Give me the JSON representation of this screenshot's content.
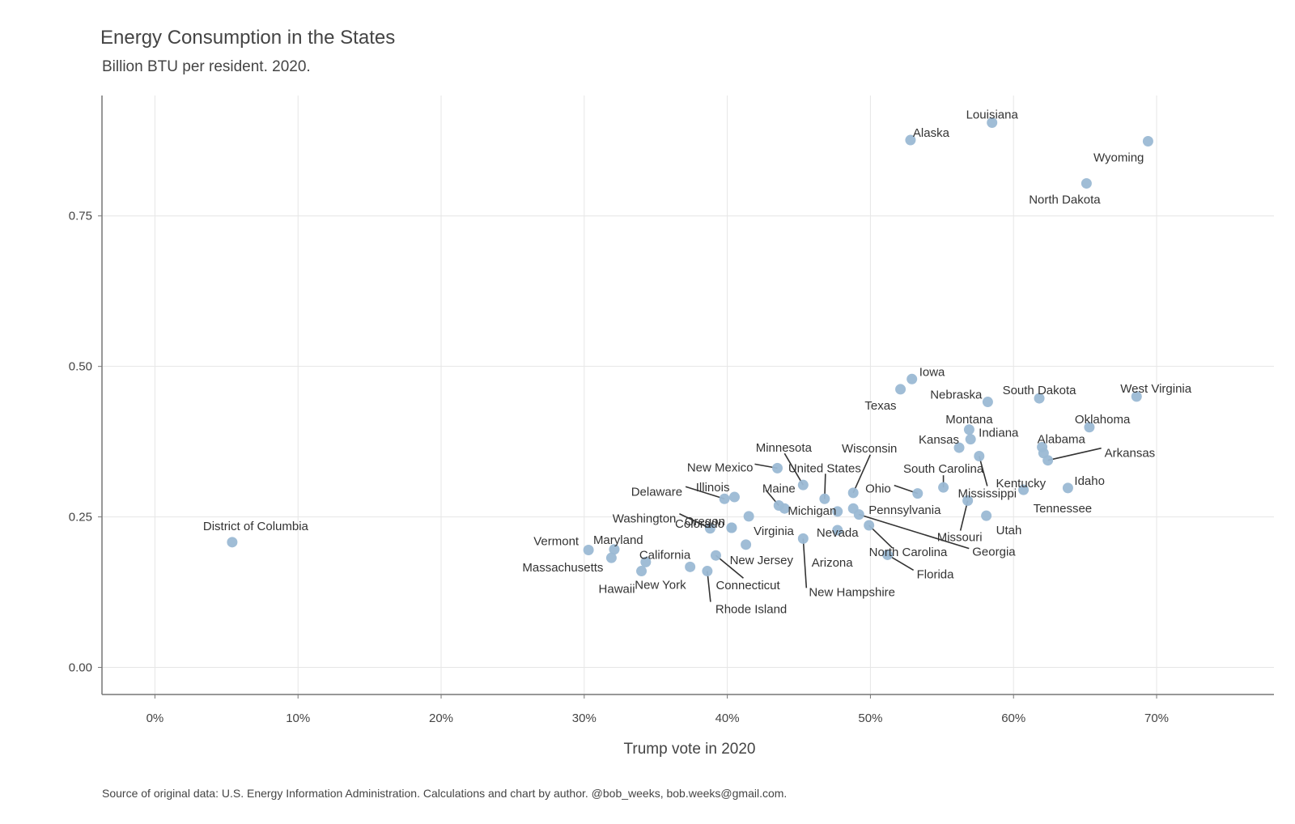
{
  "chart_data": {
    "type": "scatter",
    "title": "Energy Consumption in the States",
    "subtitle": "Billion BTU per resident. 2020.",
    "xlabel": "Trump vote in 2020",
    "ylabel": "",
    "caption": "Source of original data: U.S. Energy Information Administration. Calculations and chart by author. @bob_weeks, bob.weeks@gmail.com.",
    "xlim": [
      -0.037,
      0.782
    ],
    "ylim": [
      -0.045,
      0.95
    ],
    "x_ticks": [
      0,
      0.1,
      0.2,
      0.3,
      0.4,
      0.5,
      0.6,
      0.7
    ],
    "x_tick_labels": [
      "0%",
      "10%",
      "20%",
      "30%",
      "40%",
      "50%",
      "60%",
      "70%"
    ],
    "y_ticks": [
      0,
      0.25,
      0.5,
      0.75
    ],
    "y_tick_labels": [
      "0.00",
      "0.25",
      "0.50",
      "0.75"
    ],
    "grid": true,
    "legend": "none",
    "point_color": "#9bb9d4",
    "points": [
      {
        "name": "District of Columbia",
        "x": 0.054,
        "y": 0.208
      },
      {
        "name": "Vermont",
        "x": 0.303,
        "y": 0.195
      },
      {
        "name": "Maryland",
        "x": 0.321,
        "y": 0.196
      },
      {
        "name": "Massachusetts",
        "x": 0.319,
        "y": 0.182
      },
      {
        "name": "Hawaii",
        "x": 0.34,
        "y": 0.16
      },
      {
        "name": "California",
        "x": 0.343,
        "y": 0.175
      },
      {
        "name": "New York",
        "x": 0.374,
        "y": 0.167
      },
      {
        "name": "Rhode Island",
        "x": 0.386,
        "y": 0.16
      },
      {
        "name": "Connecticut",
        "x": 0.392,
        "y": 0.186
      },
      {
        "name": "Washington",
        "x": 0.388,
        "y": 0.231
      },
      {
        "name": "Delaware",
        "x": 0.398,
        "y": 0.28
      },
      {
        "name": "Illinois",
        "x": 0.405,
        "y": 0.283
      },
      {
        "name": "Colorado",
        "x": 0.403,
        "y": 0.232
      },
      {
        "name": "Oregon",
        "x": 0.403,
        "y": 0.232
      },
      {
        "name": "New Jersey",
        "x": 0.413,
        "y": 0.204
      },
      {
        "name": "Virginia",
        "x": 0.415,
        "y": 0.251
      },
      {
        "name": "New Mexico",
        "x": 0.435,
        "y": 0.331
      },
      {
        "name": "Maine",
        "x": 0.436,
        "y": 0.269
      },
      {
        "name": "Michigan",
        "x": 0.44,
        "y": 0.264
      },
      {
        "name": "Minnesota",
        "x": 0.453,
        "y": 0.303
      },
      {
        "name": "New Hampshire",
        "x": 0.453,
        "y": 0.214
      },
      {
        "name": "United States",
        "x": 0.468,
        "y": 0.28
      },
      {
        "name": "Nevada",
        "x": 0.477,
        "y": 0.228
      },
      {
        "name": "Arizona",
        "x": 0.477,
        "y": 0.259
      },
      {
        "name": "Wisconsin",
        "x": 0.488,
        "y": 0.29
      },
      {
        "name": "Pennsylvania",
        "x": 0.488,
        "y": 0.264
      },
      {
        "name": "Georgia",
        "x": 0.492,
        "y": 0.254
      },
      {
        "name": "North Carolina",
        "x": 0.499,
        "y": 0.236
      },
      {
        "name": "Florida",
        "x": 0.512,
        "y": 0.187
      },
      {
        "name": "Texas",
        "x": 0.521,
        "y": 0.462
      },
      {
        "name": "Iowa",
        "x": 0.529,
        "y": 0.479
      },
      {
        "name": "Alaska",
        "x": 0.528,
        "y": 0.876
      },
      {
        "name": "Ohio",
        "x": 0.533,
        "y": 0.289
      },
      {
        "name": "South Carolina",
        "x": 0.551,
        "y": 0.299
      },
      {
        "name": "Kansas",
        "x": 0.562,
        "y": 0.365
      },
      {
        "name": "Missouri",
        "x": 0.568,
        "y": 0.277
      },
      {
        "name": "Montana",
        "x": 0.569,
        "y": 0.395
      },
      {
        "name": "Indiana",
        "x": 0.57,
        "y": 0.379
      },
      {
        "name": "Mississippi",
        "x": 0.576,
        "y": 0.351
      },
      {
        "name": "Utah",
        "x": 0.581,
        "y": 0.252
      },
      {
        "name": "Nebraska",
        "x": 0.582,
        "y": 0.441
      },
      {
        "name": "Louisiana",
        "x": 0.585,
        "y": 0.905
      },
      {
        "name": "Kentucky",
        "x": 0.621,
        "y": 0.356
      },
      {
        "name": "Tennessee",
        "x": 0.607,
        "y": 0.295
      },
      {
        "name": "South Dakota",
        "x": 0.618,
        "y": 0.447
      },
      {
        "name": "Alabama",
        "x": 0.62,
        "y": 0.366
      },
      {
        "name": "Arkansas",
        "x": 0.624,
        "y": 0.344
      },
      {
        "name": "Idaho",
        "x": 0.638,
        "y": 0.298
      },
      {
        "name": "North Dakota",
        "x": 0.651,
        "y": 0.804
      },
      {
        "name": "Oklahoma",
        "x": 0.653,
        "y": 0.399
      },
      {
        "name": "West Virginia",
        "x": 0.686,
        "y": 0.45
      },
      {
        "name": "Wyoming",
        "x": 0.694,
        "y": 0.874
      }
    ]
  }
}
